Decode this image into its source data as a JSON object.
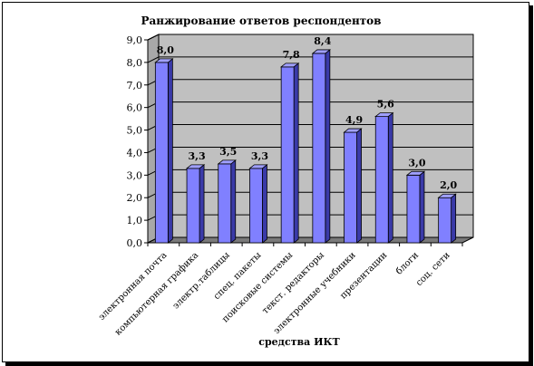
{
  "chart_data": {
    "type": "bar",
    "title": "Ранжирование ответов респондентов",
    "xlabel": "средства ИКТ",
    "ylabel": "",
    "ylim": [
      0,
      9
    ],
    "yticks": [
      "0,0",
      "1,0",
      "2,0",
      "3,0",
      "4,0",
      "5,0",
      "6,0",
      "7,0",
      "8,0",
      "9,0"
    ],
    "categories": [
      "электронная почта",
      "компьютерная графика",
      "электр.таблицы",
      "спец. пакеты",
      "поисковые системы",
      "текст. редакторы",
      "электронные учебники",
      "презентации",
      "блоги",
      "соц. сети"
    ],
    "values": [
      8.0,
      3.3,
      3.5,
      3.3,
      7.8,
      8.4,
      4.9,
      5.6,
      3.0,
      2.0
    ],
    "value_labels": [
      "8,0",
      "3,3",
      "3,5",
      "3,3",
      "7,8",
      "8,4",
      "4,9",
      "5,6",
      "3,0",
      "2,0"
    ],
    "grid": true,
    "legend": "none",
    "colors": {
      "bar_front": "#8080ff",
      "bar_top": "#a0a0ff",
      "bar_side": "#3a3aa8",
      "wall": "#c0c0c0",
      "floor": "#7a7a7a",
      "gridline": "#000000"
    }
  }
}
